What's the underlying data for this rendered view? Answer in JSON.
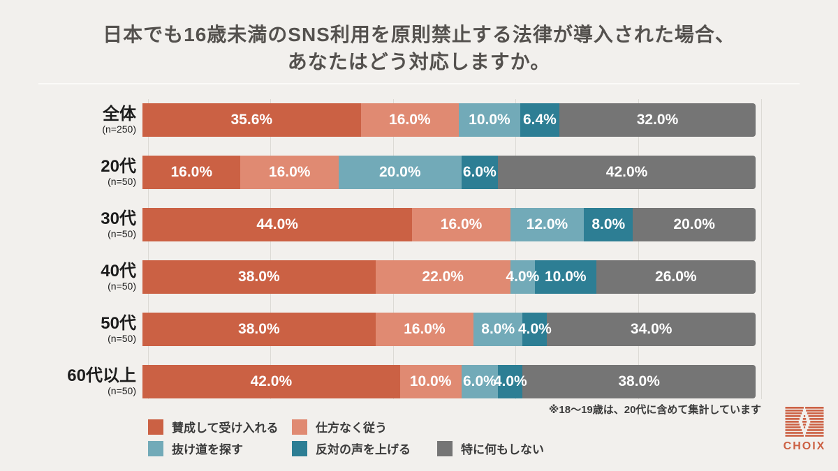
{
  "title": {
    "line1": "日本でも16歳未満のSNS利用を原則禁止する法律が導入された場合、",
    "line2": "あなたはどう対応しますか。"
  },
  "footnote": {
    "text": "※18〜19歳は、20代に含めて集計しています"
  },
  "logo": {
    "text": "CHOIX"
  },
  "colors": {
    "background": "#f2f0ed",
    "title_text": "#54514e",
    "row_label_text": "#1c1c1c",
    "bar_label_text": "#ffffff",
    "gridline": "#dcdad5",
    "logo_accent": "#cc6144"
  },
  "chart_data": {
    "type": "bar",
    "orientation": "horizontal",
    "stacked": true,
    "unit": "%",
    "xlim": [
      0,
      100
    ],
    "gridlines_percent": [
      0,
      20,
      40,
      60,
      80,
      100
    ],
    "legend_position": "bottom",
    "categories": [
      "全体",
      "20代",
      "30代",
      "40代",
      "50代",
      "60代以上"
    ],
    "category_n": [
      "(n=250)",
      "(n=50)",
      "(n=50)",
      "(n=50)",
      "(n=50)",
      "(n=50)"
    ],
    "series": [
      {
        "name": "賛成して受け入れる",
        "color": "#cb6144",
        "values": [
          35.6,
          16.0,
          44.0,
          38.0,
          38.0,
          42.0
        ]
      },
      {
        "name": "仕方なく従う",
        "color": "#e08a72",
        "values": [
          16.0,
          16.0,
          16.0,
          22.0,
          16.0,
          10.0
        ]
      },
      {
        "name": "抜け道を探す",
        "color": "#72aab8",
        "values": [
          10.0,
          20.0,
          12.0,
          4.0,
          8.0,
          6.0
        ]
      },
      {
        "name": "反対の声を上げる",
        "color": "#2d7e94",
        "values": [
          6.4,
          6.0,
          8.0,
          10.0,
          4.0,
          4.0
        ]
      },
      {
        "name": "特に何もしない",
        "color": "#757575",
        "values": [
          32.0,
          42.0,
          20.0,
          26.0,
          34.0,
          38.0
        ]
      }
    ]
  }
}
